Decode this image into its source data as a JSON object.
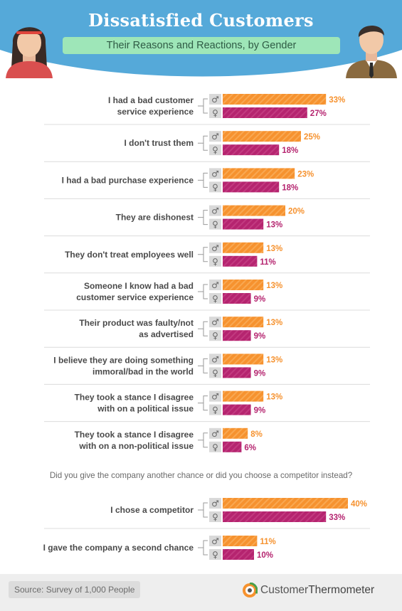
{
  "header": {
    "title": "Dissatisfied Customers",
    "subtitle": "Their Reasons and Reactions, by Gender"
  },
  "question": "Did you give the company another chance or did you choose a competitor instead?",
  "source": "Source: Survey of 1,000 People",
  "brand": {
    "part1": "Customer",
    "part2": "Thermometer"
  },
  "legend_symbols": {
    "male": "♂",
    "female": "♀"
  },
  "colors": {
    "male": "#f6922f",
    "female": "#b5246f",
    "header": "#55a9d9",
    "subtitle_bg": "#9ee6b8",
    "icon_box": "#d9d9d9"
  },
  "icons": {
    "male": "male-symbol-icon",
    "female": "female-symbol-icon",
    "brand": "thermometer-logo-icon"
  },
  "chart_data": [
    {
      "type": "bar",
      "orientation": "horizontal",
      "series": [
        {
          "name": "♂",
          "values": [
            33,
            25,
            23,
            20,
            13,
            13,
            13,
            13,
            13,
            8
          ]
        },
        {
          "name": "♀",
          "values": [
            27,
            18,
            18,
            13,
            11,
            9,
            9,
            9,
            9,
            6
          ]
        }
      ],
      "categories": [
        [
          "I had a bad customer",
          "service experience"
        ],
        [
          "I don't trust them"
        ],
        [
          "I had a bad purchase experience"
        ],
        [
          "They are dishonest"
        ],
        [
          "They don't treat employees well"
        ],
        [
          "Someone I know had a bad",
          "customer service experience"
        ],
        [
          "Their product was faulty/not",
          "as advertised"
        ],
        [
          "I believe they are doing something",
          "immoral/bad in the world"
        ],
        [
          "They took a stance I disagree",
          "with on a political issue"
        ],
        [
          "They took a stance I disagree",
          "with on a non-political issue"
        ]
      ],
      "value_suffix": "%"
    },
    {
      "type": "bar",
      "orientation": "horizontal",
      "series": [
        {
          "name": "♂",
          "values": [
            40,
            11
          ]
        },
        {
          "name": "♀",
          "values": [
            33,
            10
          ]
        }
      ],
      "categories": [
        [
          "I chose a competitor"
        ],
        [
          "I gave the company a second chance"
        ]
      ],
      "value_suffix": "%"
    }
  ]
}
